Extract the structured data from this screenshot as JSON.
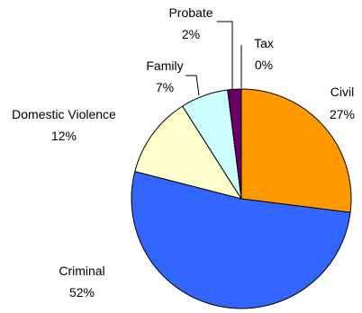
{
  "chart_data": {
    "type": "pie",
    "title": "",
    "slices": [
      {
        "label": "Civil",
        "value": 27,
        "percent_label": "27%",
        "color": "#ff9900"
      },
      {
        "label": "Criminal",
        "value": 52,
        "percent_label": "52%",
        "color": "#3366ff"
      },
      {
        "label": "Domestic Violence",
        "value": 12,
        "percent_label": "12%",
        "color": "#ffffcc"
      },
      {
        "label": "Family",
        "value": 7,
        "percent_label": "7%",
        "color": "#ccffff"
      },
      {
        "label": "Probate",
        "value": 2,
        "percent_label": "2%",
        "color": "#660066"
      },
      {
        "label": "Tax",
        "value": 0,
        "percent_label": "0%",
        "color": "#ffffff"
      }
    ],
    "legend": "none",
    "direction": "clockwise",
    "start_angle": "top"
  }
}
